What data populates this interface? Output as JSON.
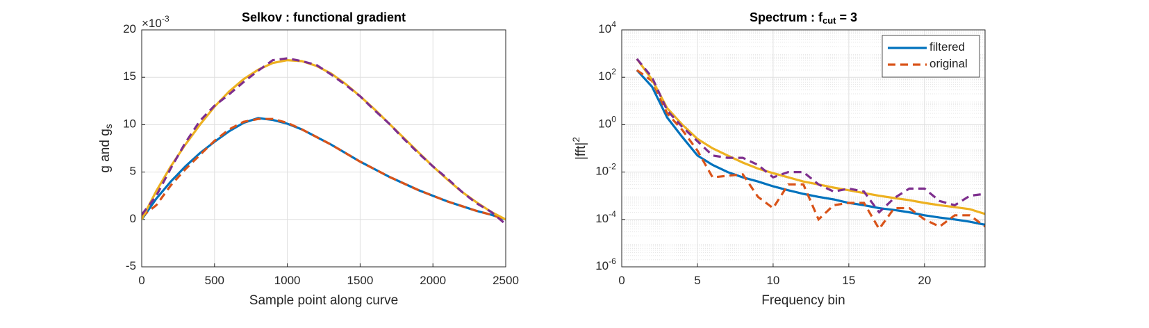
{
  "chart_data": [
    {
      "type": "line",
      "title": "Selkov : functional gradient",
      "xlabel": "Sample point along curve",
      "ylabel": "g and g_{s}",
      "y_multiplier": "×10^{-3}",
      "grid": true,
      "xlim": [
        0,
        2500
      ],
      "xticks": [
        0,
        500,
        1000,
        1500,
        2000,
        2500
      ],
      "ylim": [
        -5,
        20
      ],
      "yticks": [
        -5,
        0,
        5,
        10,
        15,
        20
      ],
      "x": [
        0,
        100,
        200,
        300,
        400,
        500,
        600,
        700,
        800,
        900,
        1000,
        1100,
        1200,
        1300,
        1400,
        1500,
        1600,
        1700,
        1800,
        1900,
        2000,
        2100,
        2200,
        2300,
        2400,
        2500
      ],
      "series": [
        {
          "color": "#0072bd",
          "dashed": false,
          "values": [
            0,
            2.2,
            4.0,
            5.6,
            7.0,
            8.2,
            9.3,
            10.2,
            10.7,
            10.5,
            10.1,
            9.5,
            8.7,
            7.9,
            7.0,
            6.1,
            5.3,
            4.5,
            3.8,
            3.1,
            2.5,
            1.9,
            1.4,
            0.9,
            0.5,
            0
          ]
        },
        {
          "color": "#d95319",
          "dashed": true,
          "values": [
            0.3,
            1.5,
            3.6,
            5.3,
            6.8,
            8.3,
            9.5,
            10.3,
            10.6,
            10.6,
            10.2,
            9.5,
            8.7,
            7.9,
            7.0,
            6.1,
            5.3,
            4.5,
            3.8,
            3.1,
            2.5,
            1.9,
            1.4,
            0.9,
            0.5,
            0
          ]
        },
        {
          "color": "#edb120",
          "dashed": false,
          "values": [
            0,
            3.0,
            5.6,
            7.9,
            10.0,
            11.9,
            13.5,
            14.8,
            15.8,
            16.5,
            16.8,
            16.7,
            16.2,
            15.4,
            14.3,
            13.0,
            11.6,
            10.1,
            8.6,
            7.1,
            5.6,
            4.2,
            2.9,
            1.8,
            0.8,
            0
          ]
        },
        {
          "color": "#7e2f8e",
          "dashed": true,
          "values": [
            0.5,
            2.5,
            5.4,
            8.1,
            10.4,
            12.0,
            13.2,
            14.5,
            15.7,
            16.8,
            17.0,
            16.7,
            16.3,
            15.3,
            14.2,
            13.0,
            11.5,
            10.1,
            8.5,
            7.0,
            5.6,
            4.3,
            2.9,
            1.7,
            0.8,
            -0.5
          ]
        }
      ]
    },
    {
      "type": "line",
      "title": "Spectrum : f_{cut} = 3",
      "xlabel": "Frequency bin",
      "ylabel": "|fft|^{2}",
      "grid": true,
      "minor_grid": true,
      "log_y": true,
      "legend": "upper right",
      "xlim": [
        0,
        24
      ],
      "xticks": [
        0,
        5,
        10,
        15,
        20
      ],
      "ylim": [
        1e-06,
        10000
      ],
      "yticks": [
        {
          "value": 1e-06,
          "label": "10^{-6}"
        },
        {
          "value": 0.0001,
          "label": "10^{-4}"
        },
        {
          "value": 0.01,
          "label": "10^{-2}"
        },
        {
          "value": 1,
          "label": "10^{0}"
        },
        {
          "value": 100,
          "label": "10^{2}"
        },
        {
          "value": 10000,
          "label": "10^{4}"
        }
      ],
      "x": [
        1,
        2,
        3,
        4,
        5,
        6,
        7,
        8,
        9,
        10,
        11,
        12,
        13,
        14,
        15,
        16,
        17,
        18,
        19,
        20,
        21,
        22,
        23,
        24
      ],
      "series": [
        {
          "name": "filtered",
          "color": "#0072bd",
          "dashed": false,
          "values": [
            200,
            40,
            2,
            0.3,
            0.05,
            0.02,
            0.01,
            0.006,
            0.004,
            0.0025,
            0.0017,
            0.0012,
            0.0009,
            0.0007,
            0.0005,
            0.0004,
            0.0003,
            0.00025,
            0.0002,
            0.00015,
            0.00012,
            0.0001,
            8e-05,
            6e-05
          ]
        },
        {
          "name": "original",
          "color": "#d95319",
          "dashed": true,
          "values": [
            200,
            70,
            3,
            0.6,
            0.08,
            0.006,
            0.007,
            0.008,
            0.0009,
            0.0003,
            0.003,
            0.003,
            0.0001,
            0.0004,
            0.0005,
            0.0005,
            4e-05,
            0.0003,
            0.0003,
            0.0001,
            5e-05,
            0.00015,
            0.00015,
            5e-05
          ]
        },
        {
          "color": "#edb120",
          "dashed": false,
          "values": [
            600,
            80,
            5,
            1,
            0.25,
            0.1,
            0.05,
            0.025,
            0.014,
            0.009,
            0.006,
            0.004,
            0.003,
            0.0022,
            0.0017,
            0.0013,
            0.001,
            0.0008,
            0.00065,
            0.0005,
            0.0004,
            0.00033,
            0.00027,
            0.00017
          ]
        },
        {
          "color": "#7e2f8e",
          "dashed": true,
          "values": [
            600,
            100,
            4,
            0.8,
            0.2,
            0.05,
            0.04,
            0.04,
            0.02,
            0.006,
            0.01,
            0.01,
            0.003,
            0.0015,
            0.002,
            0.0015,
            0.0002,
            0.0008,
            0.002,
            0.002,
            0.0006,
            0.0004,
            0.001,
            0.0012
          ]
        }
      ]
    }
  ]
}
